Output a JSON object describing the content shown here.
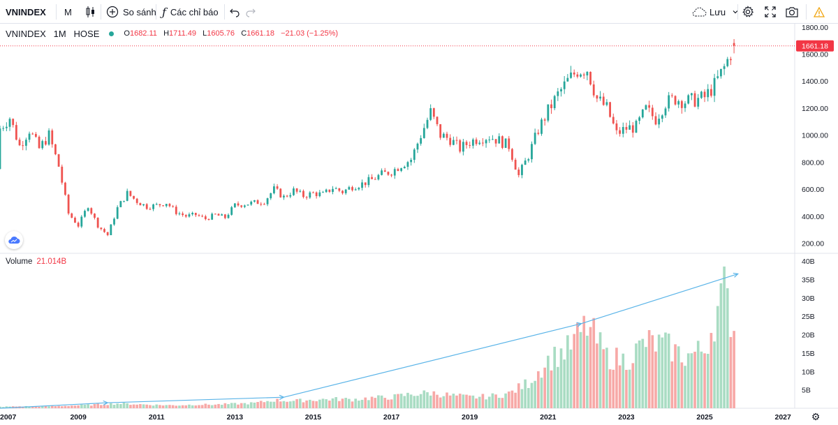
{
  "toolbar": {
    "symbol": "VNINDEX",
    "interval": "M",
    "compare_label": "So sánh",
    "indicators_label": "Các chỉ báo",
    "save_label": "Lưu"
  },
  "legend": {
    "title": "VNINDEX · 1M · HOSE",
    "title_parts": [
      "VNINDEX",
      "1M",
      "HOSE"
    ],
    "o_label": "O",
    "o_value": "1682.11",
    "h_label": "H",
    "h_value": "1711.49",
    "l_label": "L",
    "l_value": "1605.76",
    "c_label": "C",
    "c_value": "1661.18",
    "change": "−21.03 (−1.25%)"
  },
  "volume_legend": {
    "label": "Volume",
    "value": "21.014B"
  },
  "colors": {
    "up": "#26a69a",
    "down": "#ef5350",
    "vol_up": "#a9dcc3",
    "vol_down": "#f7a9a7",
    "arrow": "#5ab4e8",
    "price_tag": "#f23645"
  },
  "chart_data": [
    {
      "type": "candlestick",
      "title": "VNINDEX 1M HOSE",
      "x_label": "",
      "y_label": "",
      "x_ticks": [
        "2007",
        "2009",
        "2011",
        "2013",
        "2015",
        "2017",
        "2019",
        "2021",
        "2023",
        "2025",
        "2027"
      ],
      "y_ticks": [
        "200.00",
        "400.00",
        "600.00",
        "800.00",
        "1000.00",
        "1200.00",
        "1400.00",
        "1600.00",
        "1800.00"
      ],
      "ylim": [
        130,
        1825
      ],
      "xlim": [
        2007.0,
        2027.3
      ],
      "last_price": "1661.18",
      "closes": [
        [
          2007.0,
          1050
        ],
        [
          2007.25,
          1130
        ],
        [
          2007.5,
          920
        ],
        [
          2007.75,
          1040
        ],
        [
          2008.0,
          900
        ],
        [
          2008.25,
          1000
        ],
        [
          2008.5,
          770
        ],
        [
          2008.75,
          420
        ],
        [
          2009.0,
          330
        ],
        [
          2009.25,
          480
        ],
        [
          2009.5,
          330
        ],
        [
          2009.75,
          260
        ],
        [
          2010.0,
          460
        ],
        [
          2010.25,
          570
        ],
        [
          2010.5,
          510
        ],
        [
          2010.75,
          470
        ],
        [
          2011.0,
          480
        ],
        [
          2011.25,
          500
        ],
        [
          2011.5,
          430
        ],
        [
          2011.75,
          400
        ],
        [
          2012.0,
          410
        ],
        [
          2012.25,
          380
        ],
        [
          2012.5,
          410
        ],
        [
          2012.75,
          390
        ],
        [
          2013.0,
          480
        ],
        [
          2013.25,
          490
        ],
        [
          2013.5,
          500
        ],
        [
          2013.75,
          510
        ],
        [
          2014.0,
          600
        ],
        [
          2014.25,
          540
        ],
        [
          2014.5,
          590
        ],
        [
          2014.75,
          550
        ],
        [
          2015.0,
          570
        ],
        [
          2015.25,
          560
        ],
        [
          2015.5,
          610
        ],
        [
          2015.75,
          580
        ],
        [
          2016.0,
          620
        ],
        [
          2016.25,
          640
        ],
        [
          2016.5,
          670
        ],
        [
          2016.75,
          710
        ],
        [
          2017.0,
          730
        ],
        [
          2017.25,
          780
        ],
        [
          2017.5,
          820
        ],
        [
          2017.75,
          1000
        ],
        [
          2018.0,
          1170
        ],
        [
          2018.25,
          1000
        ],
        [
          2018.5,
          970
        ],
        [
          2018.75,
          900
        ],
        [
          2019.0,
          950
        ],
        [
          2019.25,
          980
        ],
        [
          2019.5,
          990
        ],
        [
          2019.75,
          960
        ],
        [
          2020.0,
          920
        ],
        [
          2020.25,
          700
        ],
        [
          2020.5,
          850
        ],
        [
          2020.75,
          1040
        ],
        [
          2021.0,
          1180
        ],
        [
          2021.25,
          1300
        ],
        [
          2021.5,
          1400
        ],
        [
          2021.75,
          1480
        ],
        [
          2022.0,
          1490
        ],
        [
          2022.25,
          1270
        ],
        [
          2022.5,
          1200
        ],
        [
          2022.75,
          1010
        ],
        [
          2023.0,
          1050
        ],
        [
          2023.25,
          1060
        ],
        [
          2023.5,
          1190
        ],
        [
          2023.75,
          1120
        ],
        [
          2024.0,
          1240
        ],
        [
          2024.25,
          1270
        ],
        [
          2024.5,
          1250
        ],
        [
          2024.75,
          1260
        ],
        [
          2025.0,
          1280
        ],
        [
          2025.25,
          1370
        ],
        [
          2025.5,
          1500
        ],
        [
          2025.75,
          1661.18
        ]
      ]
    },
    {
      "type": "bar",
      "title": "Volume",
      "x_label": "",
      "y_label": "",
      "y_ticks": [
        "5B",
        "10B",
        "15B",
        "20B",
        "25B",
        "30B",
        "35B",
        "40B"
      ],
      "ylim": [
        0,
        40
      ],
      "units": "B",
      "volumes": [
        [
          2007.0,
          0.4
        ],
        [
          2007.5,
          0.5
        ],
        [
          2008.0,
          0.5
        ],
        [
          2008.5,
          0.6
        ],
        [
          2009.0,
          0.8
        ],
        [
          2009.5,
          1.0
        ],
        [
          2010.0,
          1.3
        ],
        [
          2010.5,
          1.1
        ],
        [
          2011.0,
          0.9
        ],
        [
          2011.5,
          0.8
        ],
        [
          2012.0,
          1.0
        ],
        [
          2012.5,
          1.0
        ],
        [
          2013.0,
          1.2
        ],
        [
          2013.5,
          1.4
        ],
        [
          2014.0,
          2.2
        ],
        [
          2014.5,
          2.0
        ],
        [
          2015.0,
          2.3
        ],
        [
          2015.5,
          2.5
        ],
        [
          2016.0,
          2.4
        ],
        [
          2016.5,
          2.8
        ],
        [
          2017.0,
          3.0
        ],
        [
          2017.5,
          3.8
        ],
        [
          2018.0,
          4.2
        ],
        [
          2018.5,
          3.5
        ],
        [
          2019.0,
          3.0
        ],
        [
          2019.5,
          3.2
        ],
        [
          2020.0,
          4.0
        ],
        [
          2020.5,
          7.0
        ],
        [
          2021.0,
          13.0
        ],
        [
          2021.5,
          16.0
        ],
        [
          2022.0,
          22.5
        ],
        [
          2022.5,
          14.0
        ],
        [
          2023.0,
          13.0
        ],
        [
          2023.5,
          18.0
        ],
        [
          2024.0,
          17.0
        ],
        [
          2024.5,
          14.0
        ],
        [
          2025.0,
          16.0
        ],
        [
          2025.5,
          32.0
        ],
        [
          2025.75,
          21.014
        ]
      ],
      "trend_points": [
        [
          2007.0,
          0.0
        ],
        [
          2009.75,
          1.5
        ],
        [
          2014.25,
          3.0
        ],
        [
          2021.85,
          23.0
        ],
        [
          2025.85,
          36.5
        ]
      ]
    }
  ]
}
